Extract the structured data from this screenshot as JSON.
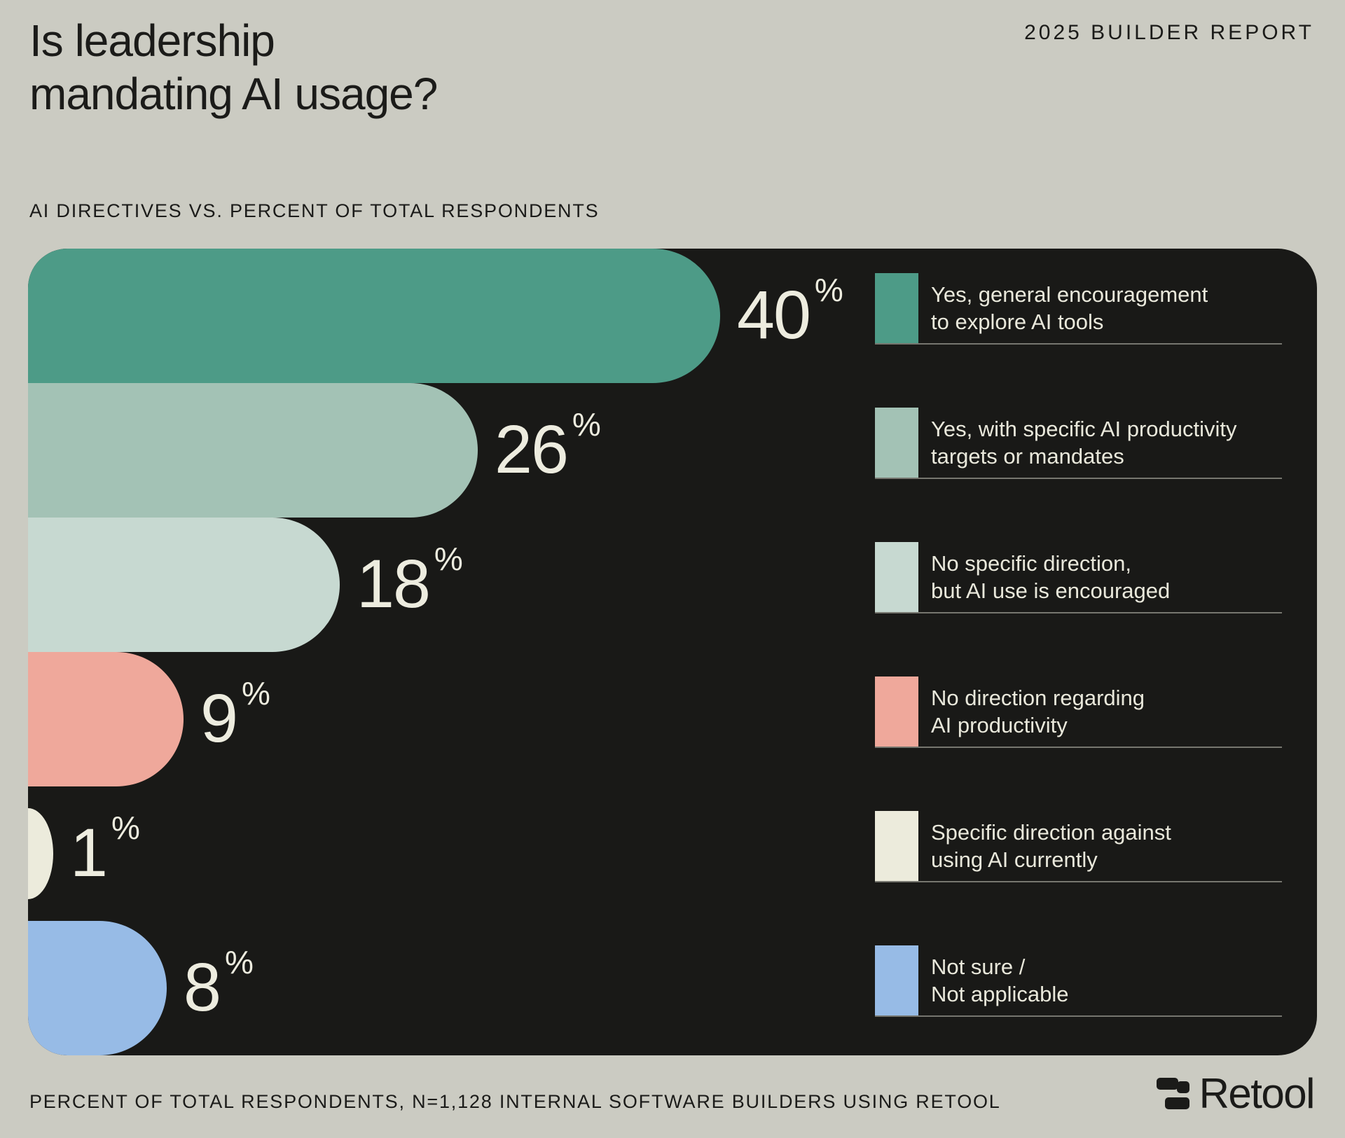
{
  "header": {
    "title": "Is leadership\nmandating AI usage?",
    "report_label": "2025 BUILDER REPORT"
  },
  "chart_data": {
    "type": "bar",
    "orientation": "horizontal",
    "title": "Is leadership mandating AI usage?",
    "subtitle": "AI DIRECTIVES VS. PERCENT OF TOTAL RESPONDENTS",
    "unit": "%",
    "xlim": [
      0,
      40
    ],
    "grid": false,
    "legend_position": "right",
    "categories": [
      "Yes, general encouragement to explore AI tools",
      "Yes, with specific AI productivity targets or mandates",
      "No specific direction, but AI use is encouraged",
      "No direction regarding AI productivity",
      "Specific direction against using AI currently",
      "Not sure / Not applicable"
    ],
    "values": [
      40,
      26,
      18,
      9,
      1,
      8
    ],
    "colors": [
      "#4d9b87",
      "#a3c2b5",
      "#c7d9d1",
      "#efa89b",
      "#ecebdc",
      "#97bbe6"
    ]
  },
  "legend": {
    "items": [
      {
        "line1": "Yes, general encouragement",
        "line2": "to explore AI tools",
        "color": "#4d9b87"
      },
      {
        "line1": "Yes, with specific AI productivity",
        "line2": "targets or mandates",
        "color": "#a3c2b5"
      },
      {
        "line1": "No specific direction,",
        "line2": "but AI use is encouraged",
        "color": "#c7d9d1"
      },
      {
        "line1": "No direction regarding",
        "line2": "AI productivity",
        "color": "#efa89b"
      },
      {
        "line1": "Specific direction against",
        "line2": "using AI currently",
        "color": "#ecebdc"
      },
      {
        "line1": "Not sure /",
        "line2": "Not applicable",
        "color": "#97bbe6"
      }
    ]
  },
  "footer": {
    "note": "PERCENT OF TOTAL RESPONDENTS, N=1,128 INTERNAL SOFTWARE BUILDERS USING RETOOL",
    "brand": "Retool"
  },
  "style": {
    "background": "#cbcbc2",
    "panel_background": "#191917",
    "value_text_color": "#edecdf",
    "legend_text_color": "#e9e8db",
    "heading_text_color": "#1b1b19",
    "divider_color": "#76766f"
  }
}
